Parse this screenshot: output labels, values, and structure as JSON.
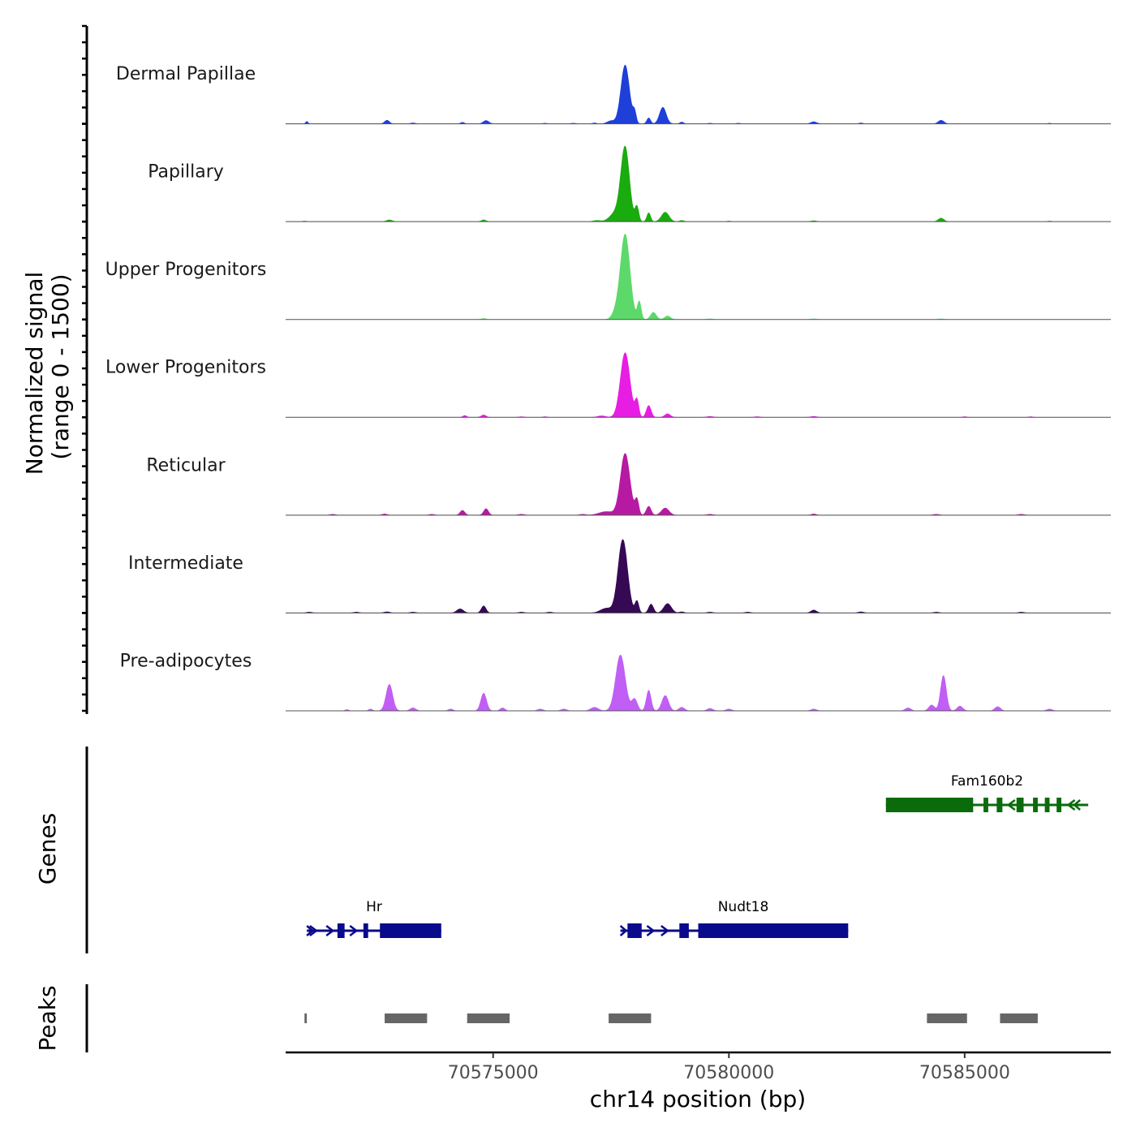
{
  "chart_data": {
    "type": "coverage",
    "chromosome": "chr14",
    "xlabel": "chr14 position (bp)",
    "ylabel_line1": "Normalized signal",
    "ylabel_line2": "(range 0 - 1500)",
    "signal_range": [
      0,
      1500
    ],
    "xlim": [
      70570600,
      70588100
    ],
    "x_ticks": [
      70575000,
      70580000,
      70585000
    ],
    "x_tick_labels": [
      "70575000",
      "70580000",
      "70585000"
    ],
    "tracks": [
      {
        "name": "Dermal Papillae",
        "color": "#1f3fd9",
        "peaks": [
          [
            70571050,
            40,
            25
          ],
          [
            70572750,
            60,
            50
          ],
          [
            70573300,
            15,
            50
          ],
          [
            70574350,
            25,
            40
          ],
          [
            70574850,
            55,
            60
          ],
          [
            70576100,
            10,
            40
          ],
          [
            70576700,
            10,
            50
          ],
          [
            70577150,
            15,
            40
          ],
          [
            70577500,
            50,
            80
          ],
          [
            70577800,
            1000,
            90
          ],
          [
            70578000,
            180,
            35
          ],
          [
            70578300,
            100,
            40
          ],
          [
            70578600,
            280,
            70
          ],
          [
            70579000,
            30,
            40
          ],
          [
            70579600,
            10,
            40
          ],
          [
            70580200,
            10,
            40
          ],
          [
            70581800,
            35,
            60
          ],
          [
            70582800,
            15,
            40
          ],
          [
            70584500,
            60,
            60
          ],
          [
            70586800,
            10,
            30
          ]
        ]
      },
      {
        "name": "Papillary",
        "color": "#1aab0f",
        "peaks": [
          [
            70571000,
            10,
            40
          ],
          [
            70572800,
            30,
            60
          ],
          [
            70574800,
            30,
            50
          ],
          [
            70577200,
            20,
            80
          ],
          [
            70577600,
            150,
            120
          ],
          [
            70577800,
            1250,
            90
          ],
          [
            70578050,
            250,
            40
          ],
          [
            70578300,
            150,
            40
          ],
          [
            70578650,
            160,
            80
          ],
          [
            70579000,
            20,
            50
          ],
          [
            70580000,
            10,
            40
          ],
          [
            70581800,
            15,
            60
          ],
          [
            70584500,
            60,
            60
          ],
          [
            70586800,
            10,
            40
          ]
        ]
      },
      {
        "name": "Upper Progenitors",
        "color": "#5cd96a",
        "peaks": [
          [
            70574800,
            15,
            50
          ],
          [
            70577600,
            100,
            80
          ],
          [
            70577800,
            1450,
            100
          ],
          [
            70578100,
            300,
            40
          ],
          [
            70578400,
            120,
            60
          ],
          [
            70578700,
            60,
            60
          ],
          [
            70579600,
            10,
            60
          ],
          [
            70581800,
            10,
            60
          ],
          [
            70584500,
            10,
            60
          ]
        ]
      },
      {
        "name": "Lower Progenitors",
        "color": "#e81de3",
        "peaks": [
          [
            70574400,
            30,
            40
          ],
          [
            70574800,
            40,
            50
          ],
          [
            70575600,
            10,
            50
          ],
          [
            70576100,
            10,
            40
          ],
          [
            70577300,
            25,
            80
          ],
          [
            70577800,
            1100,
            100
          ],
          [
            70578050,
            280,
            40
          ],
          [
            70578300,
            200,
            50
          ],
          [
            70578700,
            60,
            60
          ],
          [
            70579600,
            15,
            60
          ],
          [
            70580600,
            10,
            60
          ],
          [
            70581800,
            15,
            60
          ],
          [
            70585000,
            10,
            40
          ],
          [
            70586400,
            10,
            40
          ]
        ]
      },
      {
        "name": "Reticular",
        "color": "#b61aa3",
        "peaks": [
          [
            70571600,
            15,
            50
          ],
          [
            70572700,
            20,
            50
          ],
          [
            70573700,
            15,
            50
          ],
          [
            70574350,
            80,
            50
          ],
          [
            70574850,
            110,
            50
          ],
          [
            70575600,
            15,
            60
          ],
          [
            70576900,
            15,
            60
          ],
          [
            70577400,
            60,
            150
          ],
          [
            70577800,
            1050,
            100
          ],
          [
            70578050,
            250,
            40
          ],
          [
            70578300,
            150,
            50
          ],
          [
            70578650,
            120,
            80
          ],
          [
            70579600,
            15,
            60
          ],
          [
            70581800,
            20,
            50
          ],
          [
            70584400,
            15,
            60
          ],
          [
            70586200,
            15,
            60
          ]
        ]
      },
      {
        "name": "Intermediate",
        "color": "#360955",
        "peaks": [
          [
            70571100,
            15,
            60
          ],
          [
            70572100,
            15,
            60
          ],
          [
            70572750,
            20,
            60
          ],
          [
            70573300,
            15,
            60
          ],
          [
            70574300,
            70,
            70
          ],
          [
            70574800,
            120,
            50
          ],
          [
            70575600,
            15,
            60
          ],
          [
            70576200,
            15,
            60
          ],
          [
            70577400,
            80,
            120
          ],
          [
            70577750,
            1250,
            100
          ],
          [
            70578050,
            200,
            40
          ],
          [
            70578350,
            150,
            50
          ],
          [
            70578700,
            160,
            80
          ],
          [
            70579000,
            20,
            50
          ],
          [
            70579600,
            15,
            60
          ],
          [
            70580400,
            15,
            60
          ],
          [
            70581800,
            50,
            60
          ],
          [
            70582800,
            20,
            60
          ],
          [
            70584400,
            15,
            60
          ],
          [
            70586200,
            15,
            60
          ]
        ]
      },
      {
        "name": "Pre-adipocytes",
        "color": "#c15ef5",
        "peaks": [
          [
            70571900,
            20,
            40
          ],
          [
            70572400,
            30,
            40
          ],
          [
            70572800,
            450,
            70
          ],
          [
            70573300,
            50,
            60
          ],
          [
            70574100,
            30,
            50
          ],
          [
            70574800,
            300,
            60
          ],
          [
            70575200,
            50,
            50
          ],
          [
            70576000,
            30,
            60
          ],
          [
            70576500,
            30,
            60
          ],
          [
            70577150,
            60,
            80
          ],
          [
            70577700,
            950,
            100
          ],
          [
            70578000,
            200,
            60
          ],
          [
            70578300,
            350,
            50
          ],
          [
            70578650,
            260,
            70
          ],
          [
            70579000,
            60,
            60
          ],
          [
            70579600,
            40,
            60
          ],
          [
            70580000,
            30,
            60
          ],
          [
            70581800,
            30,
            60
          ],
          [
            70583800,
            50,
            60
          ],
          [
            70584300,
            100,
            60
          ],
          [
            70584550,
            600,
            60
          ],
          [
            70584900,
            80,
            60
          ],
          [
            70585700,
            70,
            60
          ],
          [
            70586800,
            30,
            60
          ]
        ]
      }
    ],
    "genes_track_label": "Genes",
    "genes": [
      {
        "name": "Hr",
        "strand": "+",
        "color": "#0a0a8c",
        "start": 70571050,
        "end": 70573900,
        "exons": [
          [
            70571700,
            70571850
          ],
          [
            70572250,
            70572350
          ],
          [
            70572600,
            70573900
          ]
        ],
        "arrows": [
          70571200,
          70571550,
          70572050
        ]
      },
      {
        "name": "Nudt18",
        "strand": "+",
        "color": "#0a0a8c",
        "start": 70577700,
        "end": 70582530,
        "exons": [
          [
            70577850,
            70578150
          ],
          [
            70578950,
            70579150
          ],
          [
            70579350,
            70582530
          ]
        ],
        "arrows": [
          70578350,
          70578650
        ]
      },
      {
        "name": "Fam160b2",
        "strand": "-",
        "color": "#0a6b0a",
        "start": 70583330,
        "end": 70587620,
        "exons": [
          [
            70583330,
            70585180
          ],
          [
            70585400,
            70585500
          ],
          [
            70585680,
            70585800
          ],
          [
            70586100,
            70586250
          ],
          [
            70586450,
            70586550
          ],
          [
            70586700,
            70586800
          ],
          [
            70586950,
            70587050
          ]
        ],
        "arrows": [
          70585980,
          70587250
        ]
      }
    ],
    "peaks_track_label": "Peaks",
    "peak_regions": [
      [
        70571000,
        70571050
      ],
      [
        70572700,
        70573600
      ],
      [
        70574450,
        70575350
      ],
      [
        70577450,
        70578350
      ],
      [
        70584200,
        70585050
      ],
      [
        70585750,
        70586550
      ]
    ]
  }
}
